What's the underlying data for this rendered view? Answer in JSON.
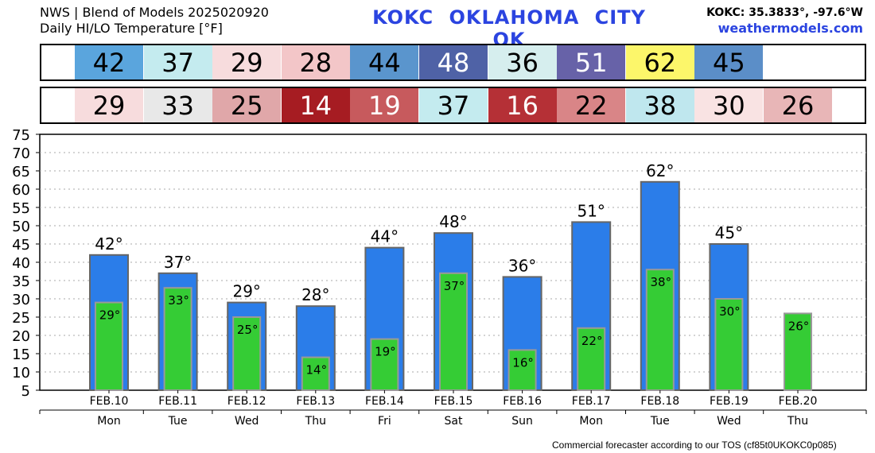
{
  "header": {
    "source_line": "NWS | Blend of Models 2025020920",
    "subtitle": "Daily HI/LO Temperature [°F]",
    "station": "KOKC   OKLAHOMA CITY   OK",
    "coords": "KOKC: 35.3833°, -97.6°W",
    "site": "weathermodels.com"
  },
  "footer": {
    "note": "Commercial forecaster according to our TOS (cf85t0UKOKC0p085)"
  },
  "hi_strip": [
    {
      "value": "42",
      "bg": "#5aa5dd",
      "fg": "#000000"
    },
    {
      "value": "37",
      "bg": "#c4ebef",
      "fg": "#000000"
    },
    {
      "value": "29",
      "bg": "#f7dcdd",
      "fg": "#000000"
    },
    {
      "value": "28",
      "bg": "#f3c6c8",
      "fg": "#000000"
    },
    {
      "value": "44",
      "bg": "#5a95cd",
      "fg": "#000000"
    },
    {
      "value": "48",
      "bg": "#4f62a6",
      "fg": "#ffffff"
    },
    {
      "value": "36",
      "bg": "#d6eeee",
      "fg": "#000000"
    },
    {
      "value": "51",
      "bg": "#6762a8",
      "fg": "#ffffff"
    },
    {
      "value": "62",
      "bg": "#fcf66a",
      "fg": "#000000"
    },
    {
      "value": "45",
      "bg": "#5b8ec8",
      "fg": "#000000"
    }
  ],
  "lo_strip": [
    {
      "value": "29",
      "bg": "#f7dcdd",
      "fg": "#000000"
    },
    {
      "value": "33",
      "bg": "#e8e8e8",
      "fg": "#000000"
    },
    {
      "value": "25",
      "bg": "#e0a7a9",
      "fg": "#000000"
    },
    {
      "value": "14",
      "bg": "#a61c22",
      "fg": "#ffffff"
    },
    {
      "value": "19",
      "bg": "#c75a5d",
      "fg": "#ffffff"
    },
    {
      "value": "37",
      "bg": "#c4ebef",
      "fg": "#000000"
    },
    {
      "value": "16",
      "bg": "#b53036",
      "fg": "#ffffff"
    },
    {
      "value": "22",
      "bg": "#d98587",
      "fg": "#000000"
    },
    {
      "value": "38",
      "bg": "#bfe7ee",
      "fg": "#000000"
    },
    {
      "value": "30",
      "bg": "#f9e3e3",
      "fg": "#000000"
    },
    {
      "value": "26",
      "bg": "#e8b6b7",
      "fg": "#000000"
    }
  ],
  "chart_data": {
    "type": "bar",
    "categories": [
      "FEB.10",
      "FEB.11",
      "FEB.12",
      "FEB.13",
      "FEB.14",
      "FEB.15",
      "FEB.16",
      "FEB.17",
      "FEB.18",
      "FEB.19",
      "FEB.20"
    ],
    "weekdays": [
      "Mon",
      "Tue",
      "Wed",
      "Thu",
      "Fri",
      "Sat",
      "Sun",
      "Mon",
      "Tue",
      "Wed",
      "Thu"
    ],
    "series": [
      {
        "values": [
          42,
          37,
          29,
          28,
          44,
          48,
          36,
          51,
          62,
          45,
          null
        ],
        "color": "#2b7de9"
      },
      {
        "values": [
          29,
          33,
          25,
          14,
          19,
          37,
          16,
          22,
          38,
          30,
          26
        ],
        "color": "#35cc35"
      }
    ],
    "ylim": [
      5,
      75
    ],
    "yticks": [
      5,
      10,
      15,
      20,
      25,
      30,
      35,
      40,
      45,
      50,
      55,
      60,
      65,
      70,
      75
    ],
    "grid": true,
    "label_suffix": "°"
  }
}
